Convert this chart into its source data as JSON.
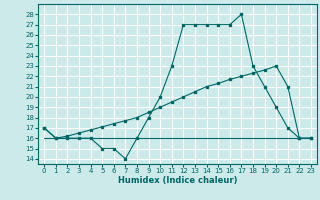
{
  "title": "",
  "xlabel": "Humidex (Indice chaleur)",
  "bg_color": "#cceaea",
  "grid_color": "#ffffff",
  "line_color": "#006666",
  "xlim": [
    -0.5,
    23.5
  ],
  "ylim": [
    13.5,
    29
  ],
  "yticks": [
    14,
    15,
    16,
    17,
    18,
    19,
    20,
    21,
    22,
    23,
    24,
    25,
    26,
    27,
    28
  ],
  "xticks": [
    0,
    1,
    2,
    3,
    4,
    5,
    6,
    7,
    8,
    9,
    10,
    11,
    12,
    13,
    14,
    15,
    16,
    17,
    18,
    19,
    20,
    21,
    22,
    23
  ],
  "line1_x": [
    0,
    1,
    2,
    3,
    4,
    5,
    6,
    7,
    8,
    9,
    10,
    11,
    12,
    13,
    14,
    15,
    16,
    17,
    18,
    19,
    20,
    21,
    22,
    23
  ],
  "line1_y": [
    17,
    16,
    16,
    16,
    16,
    15,
    15,
    14,
    16,
    18,
    20,
    23,
    27,
    27,
    27,
    27,
    27,
    28,
    23,
    21,
    19,
    17,
    16,
    16
  ],
  "line2_x": [
    0,
    23
  ],
  "line2_y": [
    16,
    16
  ],
  "line3_x": [
    0,
    1,
    2,
    3,
    4,
    5,
    6,
    7,
    8,
    9,
    10,
    11,
    12,
    13,
    14,
    15,
    16,
    17,
    18,
    19,
    20,
    21,
    22,
    23
  ],
  "line3_y": [
    17,
    16,
    16.2,
    16.5,
    16.8,
    17.1,
    17.4,
    17.7,
    18,
    18.5,
    19,
    19.5,
    20,
    20.5,
    21,
    21.3,
    21.7,
    22,
    22.3,
    22.6,
    23,
    21,
    16,
    16
  ]
}
